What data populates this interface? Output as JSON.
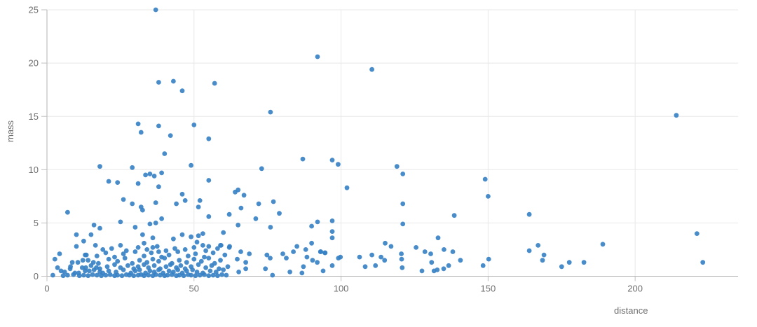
{
  "chart_data": {
    "type": "scatter",
    "title": "",
    "xlabel": "distance",
    "ylabel": "mass",
    "x_ticks": [
      0,
      50,
      100,
      150,
      200
    ],
    "y_ticks": [
      0,
      5,
      10,
      15,
      20,
      25
    ],
    "xlim": [
      0,
      235
    ],
    "ylim": [
      0,
      25
    ],
    "grid": "on",
    "legend": "none",
    "marker_color": "#3580c4",
    "marker_radius": 3.4,
    "marker_opacity": 0.9,
    "grid_color": "#e8e8e8",
    "axis_color": "#b3b3b3",
    "tick_color": "#c0c0c0",
    "tick_label_color": "#6f6f6f",
    "points": [
      [
        37,
        25
      ],
      [
        92,
        20.6
      ],
      [
        110.5,
        19.4
      ],
      [
        38,
        18.2
      ],
      [
        43,
        18.3
      ],
      [
        46,
        17.4
      ],
      [
        57,
        18.1
      ],
      [
        76,
        15.4
      ],
      [
        214,
        15.1
      ],
      [
        31,
        14.3
      ],
      [
        38,
        14.1
      ],
      [
        50,
        14.2
      ],
      [
        32,
        13.5
      ],
      [
        42,
        13.2
      ],
      [
        55,
        12.9
      ],
      [
        40,
        11.5
      ],
      [
        49,
        10.4
      ],
      [
        18,
        10.3
      ],
      [
        29,
        10.2
      ],
      [
        73,
        10.1
      ],
      [
        87,
        11
      ],
      [
        97,
        10.9
      ],
      [
        99,
        10.5
      ],
      [
        119,
        10.3
      ],
      [
        121,
        9.6
      ],
      [
        149,
        9.1
      ],
      [
        102,
        8.3
      ],
      [
        21,
        8.9
      ],
      [
        24,
        8.8
      ],
      [
        33.5,
        9.5
      ],
      [
        35,
        9.6
      ],
      [
        36.5,
        9.4
      ],
      [
        39,
        9.7
      ],
      [
        31,
        8.7
      ],
      [
        38,
        8.4
      ],
      [
        55,
        9
      ],
      [
        65,
        8.1
      ],
      [
        64,
        7.9
      ],
      [
        67,
        7.6
      ],
      [
        46,
        7.7
      ],
      [
        47,
        7.1
      ],
      [
        44,
        6.8
      ],
      [
        52,
        7.1
      ],
      [
        51.5,
        6.5
      ],
      [
        66,
        6.4
      ],
      [
        72,
        6.8
      ],
      [
        77,
        7
      ],
      [
        55,
        5.6
      ],
      [
        62,
        5.8
      ],
      [
        65,
        4.8
      ],
      [
        71,
        5.4
      ],
      [
        79,
        5.9
      ],
      [
        76,
        4.6
      ],
      [
        7,
        6
      ],
      [
        26,
        7.2
      ],
      [
        29,
        6.8
      ],
      [
        32,
        6.5
      ],
      [
        32.5,
        6.2
      ],
      [
        37,
        6.9
      ],
      [
        39,
        5.4
      ],
      [
        150,
        7.5
      ],
      [
        138.5,
        5.7
      ],
      [
        164,
        5.8
      ],
      [
        121,
        6.8
      ],
      [
        121,
        4.9
      ],
      [
        16,
        4.8
      ],
      [
        18,
        4.5
      ],
      [
        25,
        5.1
      ],
      [
        30,
        4.6
      ],
      [
        35,
        4.9
      ],
      [
        37,
        5
      ],
      [
        90,
        4.7
      ],
      [
        92,
        5.1
      ],
      [
        97,
        5.2
      ],
      [
        97,
        4.2
      ],
      [
        97,
        3.6
      ],
      [
        10,
        3.9
      ],
      [
        12.5,
        3.3
      ],
      [
        15,
        3.9
      ],
      [
        10,
        2.8
      ],
      [
        16.5,
        2.9
      ],
      [
        25,
        2.9
      ],
      [
        32.5,
        3.9
      ],
      [
        36,
        3.6
      ],
      [
        33,
        3.1
      ],
      [
        36,
        2.7
      ],
      [
        38,
        2.3
      ],
      [
        46,
        3.9
      ],
      [
        43,
        3.5
      ],
      [
        49,
        3.7
      ],
      [
        51,
        3.2
      ],
      [
        51.5,
        3.8
      ],
      [
        53,
        4
      ],
      [
        60,
        4.1
      ],
      [
        59,
        2.9
      ],
      [
        62,
        2.7
      ],
      [
        55,
        2.8
      ],
      [
        53,
        2.9
      ],
      [
        85,
        2.8
      ],
      [
        88,
        2.5
      ],
      [
        90,
        3.1
      ],
      [
        93,
        2.3
      ],
      [
        94.5,
        2.2
      ],
      [
        115,
        3.1
      ],
      [
        117,
        2.8
      ],
      [
        120.5,
        2.1
      ],
      [
        125.5,
        2.7
      ],
      [
        128.5,
        2.3
      ],
      [
        130.5,
        2.1
      ],
      [
        133,
        3.6
      ],
      [
        135,
        2.5
      ],
      [
        138,
        2.3
      ],
      [
        164,
        2.4
      ],
      [
        167,
        2.9
      ],
      [
        169,
        2
      ],
      [
        189,
        3
      ],
      [
        221,
        4
      ],
      [
        2.7,
        1.6
      ],
      [
        4.3,
        2.1
      ],
      [
        3.6,
        0.8
      ],
      [
        4.8,
        0.5
      ],
      [
        7.9,
        0.7
      ],
      [
        8.6,
        1.3
      ],
      [
        10.8,
        0.3
      ],
      [
        12.2,
        1.5
      ],
      [
        13.2,
        0.8
      ],
      [
        13.4,
        2
      ],
      [
        14.4,
        0.5
      ],
      [
        15.8,
        1.3
      ],
      [
        16.8,
        0.8
      ],
      [
        18,
        0.4
      ],
      [
        88.4,
        1.8
      ],
      [
        90.3,
        1.5
      ],
      [
        91.9,
        1.3
      ],
      [
        87.2,
        0.9
      ],
      [
        86.7,
        0.3
      ],
      [
        93.1,
        2.3
      ],
      [
        94.6,
        2.2
      ],
      [
        93.9,
        0.5
      ],
      [
        97,
        1
      ],
      [
        99.1,
        1.7
      ],
      [
        99.8,
        1.8
      ],
      [
        106.3,
        1.8
      ],
      [
        108.2,
        0.9
      ],
      [
        110.5,
        2
      ],
      [
        111.7,
        1
      ],
      [
        113.6,
        1.8
      ],
      [
        114.8,
        1.5
      ],
      [
        120.6,
        1.6
      ],
      [
        120.8,
        0.8
      ],
      [
        131.6,
        0.5
      ],
      [
        130.8,
        1.3
      ],
      [
        127.5,
        0.5
      ],
      [
        140.6,
        1.5
      ],
      [
        132.7,
        0.6
      ],
      [
        134.9,
        0.7
      ],
      [
        136.6,
        1
      ],
      [
        148.3,
        1
      ],
      [
        150.2,
        1.6
      ],
      [
        168.5,
        1.5
      ],
      [
        175,
        0.9
      ],
      [
        177.6,
        1.3
      ],
      [
        182.6,
        1.3
      ],
      [
        223,
        1.3
      ],
      [
        64.7,
        1.6
      ],
      [
        65.9,
        2.3
      ],
      [
        68.8,
        2.1
      ],
      [
        67.6,
        1.3
      ],
      [
        67.6,
        0.7
      ],
      [
        65.2,
        0.4
      ],
      [
        62.1,
        2.8
      ],
      [
        59.2,
        2.9
      ],
      [
        74.8,
        2
      ],
      [
        75.9,
        1.7
      ],
      [
        80.2,
        2.1
      ],
      [
        81.4,
        1.7
      ],
      [
        74.3,
        0.7
      ],
      [
        76.7,
        0.1
      ],
      [
        82.6,
        0.4
      ],
      [
        83.8,
        2.3
      ],
      [
        2,
        0.1
      ],
      [
        5.5,
        0.05
      ],
      [
        7,
        0.1
      ],
      [
        9,
        0.15
      ],
      [
        11,
        0.05
      ],
      [
        12.5,
        0.1
      ],
      [
        14,
        0.05
      ],
      [
        15.5,
        0.15
      ],
      [
        17,
        0.1
      ],
      [
        18.5,
        0.05
      ],
      [
        20,
        0.1
      ],
      [
        21.5,
        0.15
      ],
      [
        23,
        0.05
      ],
      [
        24,
        0.1
      ],
      [
        25.5,
        0.05
      ],
      [
        27,
        0.15
      ],
      [
        28,
        0.1
      ],
      [
        29.5,
        0.05
      ],
      [
        31,
        0.1
      ],
      [
        32,
        0.15
      ],
      [
        33,
        0.05
      ],
      [
        34.5,
        0.1
      ],
      [
        36,
        0.05
      ],
      [
        37,
        0.15
      ],
      [
        38.5,
        0.1
      ],
      [
        40,
        0.05
      ],
      [
        41,
        0.1
      ],
      [
        42.5,
        0.15
      ],
      [
        44,
        0.05
      ],
      [
        45,
        0.1
      ],
      [
        46.5,
        0.05
      ],
      [
        48,
        0.15
      ],
      [
        49,
        0.1
      ],
      [
        50.5,
        0.05
      ],
      [
        52,
        0.1
      ],
      [
        53.5,
        0.15
      ],
      [
        55,
        0.05
      ],
      [
        56.5,
        0.1
      ],
      [
        58,
        0.05
      ],
      [
        59.5,
        0.15
      ],
      [
        61,
        0.1
      ],
      [
        6,
        0.4
      ],
      [
        9.5,
        0.3
      ],
      [
        13,
        0.5
      ],
      [
        16,
        0.6
      ],
      [
        19,
        0.3
      ],
      [
        21,
        0.5
      ],
      [
        23.5,
        0.4
      ],
      [
        26,
        0.6
      ],
      [
        28.5,
        0.3
      ],
      [
        30,
        0.5
      ],
      [
        31.5,
        0.6
      ],
      [
        33.5,
        0.3
      ],
      [
        35,
        0.5
      ],
      [
        36.5,
        0.4
      ],
      [
        38,
        0.6
      ],
      [
        39.5,
        0.3
      ],
      [
        41.5,
        0.5
      ],
      [
        43,
        0.4
      ],
      [
        44.5,
        0.6
      ],
      [
        46,
        0.3
      ],
      [
        47.5,
        0.5
      ],
      [
        49.5,
        0.6
      ],
      [
        51,
        0.4
      ],
      [
        53,
        0.3
      ],
      [
        55.5,
        0.5
      ],
      [
        57.5,
        0.4
      ],
      [
        60,
        0.6
      ],
      [
        8,
        0.9
      ],
      [
        12,
        0.8
      ],
      [
        15,
        1
      ],
      [
        18,
        0.7
      ],
      [
        20.5,
        0.9
      ],
      [
        23,
        1.1
      ],
      [
        25,
        0.8
      ],
      [
        27.5,
        1
      ],
      [
        29.5,
        0.7
      ],
      [
        31,
        0.9
      ],
      [
        33,
        1.1
      ],
      [
        34.5,
        0.8
      ],
      [
        36.5,
        1
      ],
      [
        38.5,
        0.7
      ],
      [
        40.5,
        0.9
      ],
      [
        42,
        1.1
      ],
      [
        44,
        0.8
      ],
      [
        45.5,
        1
      ],
      [
        47,
        0.7
      ],
      [
        49,
        0.9
      ],
      [
        51.5,
        1.1
      ],
      [
        54,
        0.8
      ],
      [
        56,
        1
      ],
      [
        58.5,
        0.7
      ],
      [
        61.5,
        0.9
      ],
      [
        10.5,
        1.3
      ],
      [
        14,
        1.5
      ],
      [
        17.5,
        1.2
      ],
      [
        21,
        1.6
      ],
      [
        24,
        1.4
      ],
      [
        26.5,
        1.7
      ],
      [
        29,
        1.2
      ],
      [
        31.5,
        1.5
      ],
      [
        34,
        1.3
      ],
      [
        36,
        1.6
      ],
      [
        38,
        1.4
      ],
      [
        40,
        1.7
      ],
      [
        42.5,
        1.2
      ],
      [
        45,
        1.5
      ],
      [
        47.5,
        1.3
      ],
      [
        50,
        1.6
      ],
      [
        52.5,
        1.4
      ],
      [
        55,
        1.7
      ],
      [
        57,
        1.2
      ],
      [
        59,
        1.5
      ],
      [
        13,
        2
      ],
      [
        17,
        1.9
      ],
      [
        20,
        2.2
      ],
      [
        23,
        1.8
      ],
      [
        26,
        2.1
      ],
      [
        30,
        2.3
      ],
      [
        33,
        1.9
      ],
      [
        35.5,
        2.2
      ],
      [
        39,
        1.8
      ],
      [
        41.5,
        2
      ],
      [
        44.5,
        2.3
      ],
      [
        48,
        1.9
      ],
      [
        50.5,
        2.1
      ],
      [
        53.5,
        1.8
      ],
      [
        56.5,
        2.2
      ],
      [
        60.5,
        2
      ],
      [
        19,
        2.5
      ],
      [
        22,
        2.6
      ],
      [
        27,
        2.4
      ],
      [
        31,
        2.7
      ],
      [
        34,
        2.5
      ],
      [
        37.5,
        2.8
      ],
      [
        40.5,
        2.4
      ],
      [
        43.5,
        2.6
      ],
      [
        47,
        2.5
      ],
      [
        50,
        2.7
      ],
      [
        54,
        2.4
      ],
      [
        58,
        2.6
      ]
    ]
  }
}
